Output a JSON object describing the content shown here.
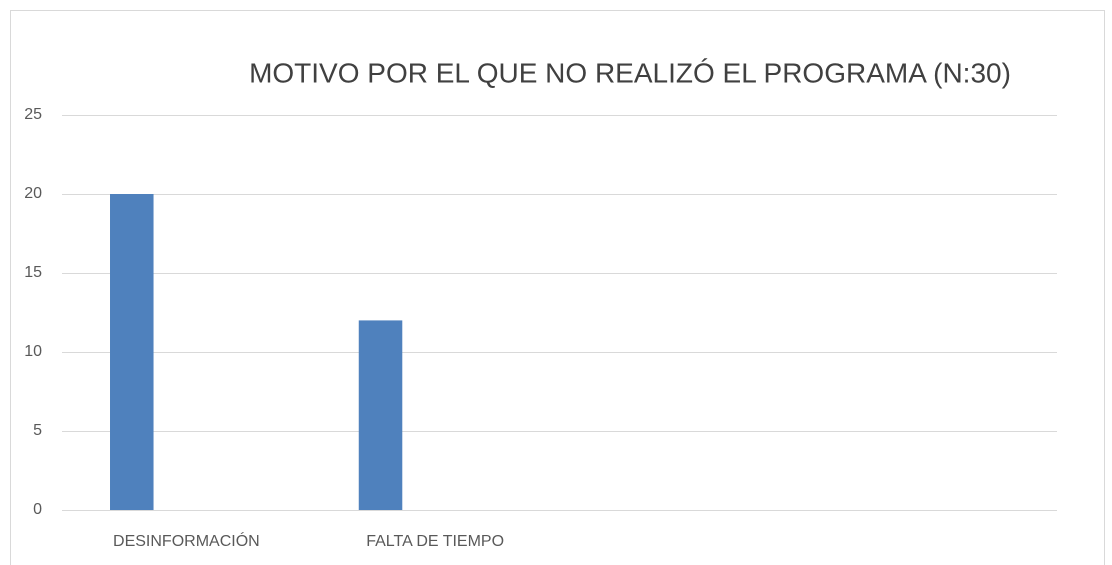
{
  "chart_data": {
    "type": "bar",
    "title": "MOTIVO POR EL QUE NO REALIZÓ EL PROGRAMA (N:30)",
    "categories": [
      "DESINFORMACIÓN",
      "FALTA DE TIEMPO",
      null,
      null
    ],
    "values": [
      20,
      12,
      null,
      null
    ],
    "color": "#4f81bd",
    "ylim": [
      0,
      25
    ],
    "yticks": [
      0,
      5,
      10,
      15,
      20,
      25
    ],
    "grid": true
  }
}
